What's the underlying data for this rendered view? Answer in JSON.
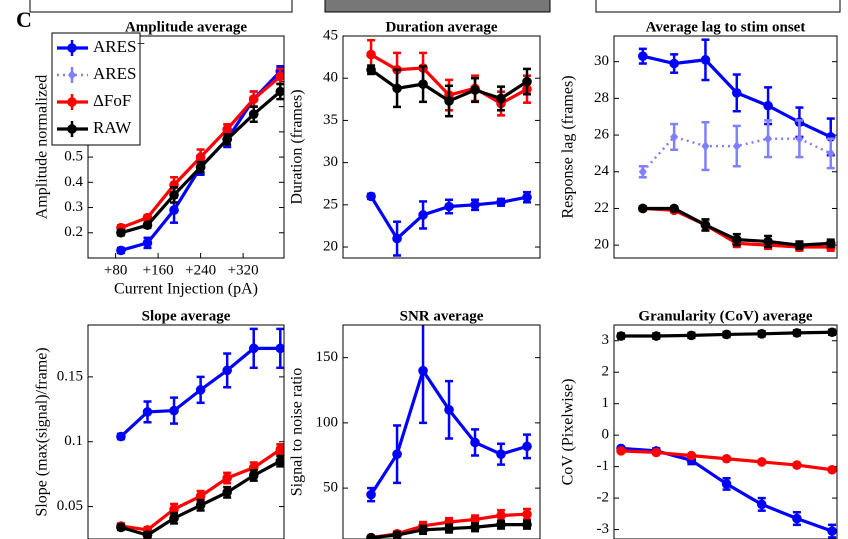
{
  "panel_label": "C",
  "chart_data": [
    {
      "type": "line",
      "title": "Amplitude average",
      "ylabel": "Amplitude normalized",
      "xlabel": "Current Injection (pA)",
      "x": [
        90,
        140,
        190,
        240,
        290,
        340,
        390
      ],
      "xlim": [
        28,
        397
      ],
      "xticks": [
        {
          "value": 80,
          "label": "+80"
        },
        {
          "value": 160,
          "label": "+160"
        },
        {
          "value": 240,
          "label": "+240"
        },
        {
          "value": 320,
          "label": "+320"
        }
      ],
      "ylim": [
        0.1,
        0.98
      ],
      "yticks": [
        0.2,
        0.3,
        0.4,
        0.5,
        0.6,
        0.7,
        0.8
      ],
      "legend": "upper left",
      "series": [
        {
          "name": "ARES⁻",
          "color": "#0000ff",
          "linestyle": "solid",
          "marker": "circle",
          "values": [
            0.13,
            0.16,
            0.29,
            0.46,
            0.57,
            0.73,
            0.84
          ],
          "errors": [
            0.01,
            0.02,
            0.05,
            0.03,
            0.03,
            0.03,
            0.02
          ]
        },
        {
          "name": "ARES",
          "color": "#8080ff",
          "linestyle": "dotted",
          "marker": "diamond",
          "values": [
            null,
            null,
            null,
            null,
            null,
            null,
            null
          ],
          "errors": [
            null,
            null,
            null,
            null,
            null,
            null,
            null
          ]
        },
        {
          "name": "ΔFoF",
          "color": "#ff0000",
          "linestyle": "solid",
          "marker": "circle",
          "values": [
            0.22,
            0.26,
            0.39,
            0.5,
            0.61,
            0.73,
            0.82
          ],
          "errors": [
            0.01,
            0.01,
            0.03,
            0.03,
            0.02,
            0.03,
            0.03
          ]
        },
        {
          "name": "RAW",
          "color": "#000000",
          "linestyle": "solid",
          "marker": "circle",
          "values": [
            0.2,
            0.23,
            0.35,
            0.46,
            0.57,
            0.67,
            0.76
          ],
          "errors": [
            0.01,
            0.01,
            0.03,
            0.02,
            0.02,
            0.03,
            0.03
          ]
        }
      ]
    },
    {
      "type": "line",
      "title": "Duration average",
      "ylabel": "Duration (frames)",
      "x": [
        90,
        140,
        190,
        240,
        290,
        340,
        390
      ],
      "xlim": [
        36,
        415
      ],
      "ylim": [
        18.7,
        45
      ],
      "yticks": [
        20,
        25,
        30,
        35,
        40,
        45
      ],
      "series": [
        {
          "name": "ARES⁻",
          "color": "#0000ff",
          "linestyle": "solid",
          "marker": "circle",
          "values": [
            26,
            21,
            23.8,
            24.8,
            25,
            25.3,
            25.9
          ],
          "errors": [
            0.3,
            2,
            1.6,
            0.8,
            0.6,
            0.4,
            0.6
          ]
        },
        {
          "name": "ΔFoF",
          "color": "#ff0000",
          "linestyle": "solid",
          "marker": "circle",
          "values": [
            42.8,
            41,
            41.2,
            38,
            38.8,
            37,
            38.7
          ],
          "errors": [
            1.7,
            2,
            1.8,
            1.8,
            1.5,
            1.4,
            1.6
          ]
        },
        {
          "name": "RAW",
          "color": "#000000",
          "linestyle": "solid",
          "marker": "circle",
          "values": [
            41,
            38.8,
            39.3,
            37.3,
            38.6,
            37.6,
            39.6
          ],
          "errors": [
            0.5,
            2.2,
            2.1,
            1.8,
            1.4,
            1.4,
            1.5
          ]
        }
      ]
    },
    {
      "type": "line",
      "title": "Average lag to stim onset",
      "ylabel": "Response lag (frames)",
      "x": [
        90,
        140,
        190,
        240,
        290,
        340,
        390
      ],
      "xlim": [
        44,
        400
      ],
      "ylim": [
        19.3,
        31.4
      ],
      "yticks": [
        20,
        22,
        24,
        26,
        28,
        30
      ],
      "series": [
        {
          "name": "ARES⁻",
          "color": "#0000ff",
          "linestyle": "solid",
          "marker": "circle",
          "values": [
            30.3,
            29.9,
            30.1,
            28.3,
            27.6,
            26.7,
            25.9
          ],
          "errors": [
            0.4,
            0.5,
            1.1,
            1,
            1,
            0.8,
            1
          ]
        },
        {
          "name": "ARES",
          "color": "#8080ff",
          "linestyle": "dotted",
          "marker": "diamond",
          "values": [
            24,
            25.9,
            25.4,
            25.4,
            25.8,
            25.8,
            25
          ],
          "errors": [
            0.3,
            0.7,
            1.3,
            1.1,
            1,
            1,
            0.8
          ]
        },
        {
          "name": "ΔFoF",
          "color": "#ff0000",
          "linestyle": "solid",
          "marker": "circle",
          "values": [
            22,
            21.9,
            21.1,
            20.1,
            20,
            19.9,
            19.9
          ],
          "errors": [
            0.1,
            0.1,
            0.3,
            0.2,
            0.2,
            0.2,
            0.2
          ]
        },
        {
          "name": "RAW",
          "color": "#000000",
          "linestyle": "solid",
          "marker": "circle",
          "values": [
            22,
            22,
            21.1,
            20.3,
            20.2,
            20,
            20.1
          ],
          "errors": [
            0.1,
            0.1,
            0.3,
            0.3,
            0.3,
            0.2,
            0.2
          ]
        }
      ]
    },
    {
      "type": "line",
      "title": "Slope average",
      "ylabel": "Slope (max(signal)/frame)",
      "x": [
        90,
        140,
        190,
        240,
        290,
        340,
        390
      ],
      "xlim": [
        28,
        397
      ],
      "ylim": [
        0.025,
        0.19
      ],
      "yticks": [
        0.05,
        0.1,
        0.15
      ],
      "series": [
        {
          "name": "ARES⁻",
          "color": "#0000ff",
          "linestyle": "solid",
          "marker": "circle",
          "values": [
            0.104,
            0.123,
            0.124,
            0.14,
            0.155,
            0.172,
            0.172
          ],
          "errors": [
            0.002,
            0.008,
            0.01,
            0.01,
            0.013,
            0.015,
            0.015
          ]
        },
        {
          "name": "ΔFoF",
          "color": "#ff0000",
          "linestyle": "solid",
          "marker": "circle",
          "values": [
            0.035,
            0.032,
            0.048,
            0.058,
            0.072,
            0.08,
            0.094
          ],
          "errors": [
            0.002,
            0.002,
            0.004,
            0.004,
            0.004,
            0.004,
            0.004
          ]
        },
        {
          "name": "RAW",
          "color": "#000000",
          "linestyle": "solid",
          "marker": "circle",
          "values": [
            0.034,
            0.028,
            0.041,
            0.051,
            0.061,
            0.074,
            0.085
          ],
          "errors": [
            0.002,
            0.002,
            0.004,
            0.004,
            0.004,
            0.004,
            0.004
          ]
        }
      ]
    },
    {
      "type": "line",
      "title": "SNR average",
      "ylabel": "Signal to noise ratio",
      "x": [
        90,
        140,
        190,
        240,
        290,
        340,
        390
      ],
      "xlim": [
        36,
        415
      ],
      "ylim": [
        11,
        175
      ],
      "yticks": [
        50,
        100,
        150
      ],
      "series": [
        {
          "name": "ARES⁻",
          "color": "#0000ff",
          "linestyle": "solid",
          "marker": "circle",
          "values": [
            45,
            76,
            140,
            110,
            85,
            76,
            82
          ],
          "errors": [
            5,
            22,
            40,
            22,
            10,
            8,
            9
          ]
        },
        {
          "name": "ΔFoF",
          "color": "#ff0000",
          "linestyle": "solid",
          "marker": "circle",
          "values": [
            12,
            15,
            21,
            24,
            26,
            29,
            30
          ],
          "errors": [
            1,
            2,
            3,
            3,
            3,
            4,
            4
          ]
        },
        {
          "name": "RAW",
          "color": "#000000",
          "linestyle": "solid",
          "marker": "circle",
          "values": [
            12,
            14,
            18,
            19,
            20,
            22,
            22
          ],
          "errors": [
            1,
            2,
            3,
            3,
            3,
            3,
            3
          ]
        }
      ]
    },
    {
      "type": "line",
      "title": "Granularity (CoV) average",
      "ylabel": "CoV  (Pixelwise)",
      "x": [
        90,
        140,
        190,
        240,
        290,
        340,
        390
      ],
      "xlim": [
        80,
        397
      ],
      "ylim": [
        -3.3,
        3.5
      ],
      "yticks": [
        -3,
        -2,
        -1,
        0,
        1,
        2,
        3
      ],
      "series": [
        {
          "name": "ARES⁻",
          "color": "#0000ff",
          "linestyle": "solid",
          "marker": "circle",
          "values": [
            -0.42,
            -0.5,
            -0.8,
            -1.55,
            -2.2,
            -2.65,
            -3.05
          ],
          "errors": [
            0.05,
            0.08,
            0.12,
            0.18,
            0.2,
            0.2,
            0.2
          ]
        },
        {
          "name": "ΔFoF",
          "color": "#ff0000",
          "linestyle": "solid",
          "marker": "circle",
          "values": [
            -0.5,
            -0.55,
            -0.65,
            -0.75,
            -0.85,
            -0.95,
            -1.1
          ],
          "errors": [
            0.04,
            0.04,
            0.04,
            0.05,
            0.05,
            0.05,
            0.05
          ]
        },
        {
          "name": "RAW",
          "color": "#000000",
          "linestyle": "solid",
          "marker": "circle",
          "values": [
            3.15,
            3.15,
            3.17,
            3.2,
            3.22,
            3.25,
            3.27
          ],
          "errors": [
            0.08,
            0.08,
            0.08,
            0.08,
            0.08,
            0.08,
            0.08
          ]
        }
      ]
    }
  ]
}
